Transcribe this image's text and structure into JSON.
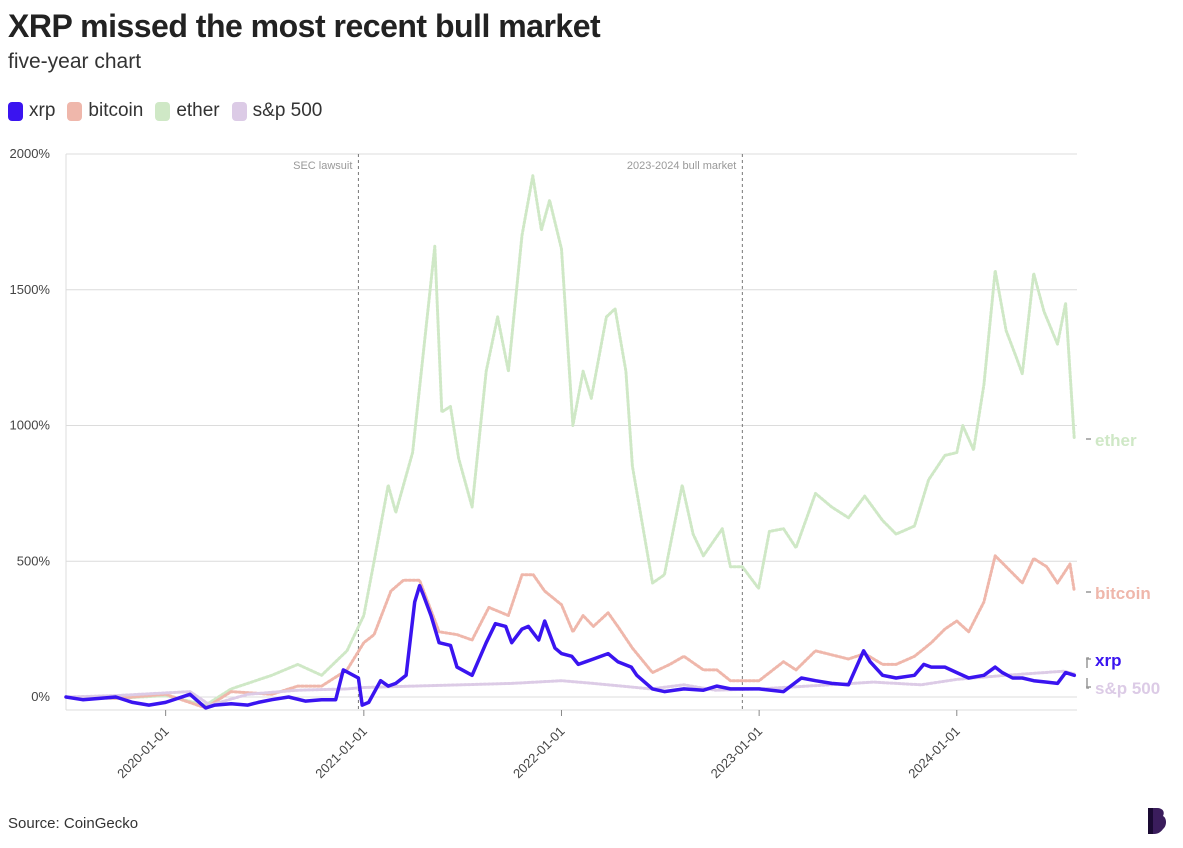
{
  "header": {
    "title": "XRP missed the most recent bull market",
    "subtitle": "five-year chart"
  },
  "legend": [
    {
      "label": "xrp",
      "color": "#3a14f0"
    },
    {
      "label": "bitcoin",
      "color": "#efb7ab"
    },
    {
      "label": "ether",
      "color": "#cfe8c6"
    },
    {
      "label": "s&p 500",
      "color": "#dccbe6"
    }
  ],
  "footer": {
    "source": "Source: CoinGecko",
    "brand_icon": "publisher-logo-icon"
  },
  "chart_data": {
    "type": "line",
    "y_ticks": [
      "2000%",
      "1500%",
      "1000%",
      "500%",
      "0%"
    ],
    "y_tick_values": [
      2000,
      1500,
      1000,
      500,
      0
    ],
    "ylim": [
      -50,
      2000
    ],
    "x_ticks": [
      "2020-01-01",
      "2021-01-01",
      "2022-01-01",
      "2023-01-01",
      "2024-01-01"
    ],
    "xlim": [
      "2019-07-01",
      "2024-08-10"
    ],
    "grid": true,
    "annotations": [
      {
        "label": "SEC lawsuit",
        "date": "2020-12-22"
      },
      {
        "label": "2023-2024 bull market",
        "date": "2022-12-01"
      }
    ],
    "series": [
      {
        "name": "ether",
        "color": "#cfe8c6",
        "end_label": "ether",
        "points": [
          [
            "2019-07-01",
            0
          ],
          [
            "2019-10-01",
            -5
          ],
          [
            "2020-01-01",
            5
          ],
          [
            "2020-03-15",
            -30
          ],
          [
            "2020-05-01",
            30
          ],
          [
            "2020-07-15",
            80
          ],
          [
            "2020-09-01",
            120
          ],
          [
            "2020-10-15",
            80
          ],
          [
            "2020-12-01",
            170
          ],
          [
            "2021-01-01",
            300
          ],
          [
            "2021-01-20",
            500
          ],
          [
            "2021-02-15",
            780
          ],
          [
            "2021-03-01",
            680
          ],
          [
            "2021-04-01",
            900
          ],
          [
            "2021-05-12",
            1660
          ],
          [
            "2021-05-25",
            1050
          ],
          [
            "2021-06-10",
            1070
          ],
          [
            "2021-06-25",
            880
          ],
          [
            "2021-07-20",
            700
          ],
          [
            "2021-08-15",
            1200
          ],
          [
            "2021-09-05",
            1400
          ],
          [
            "2021-09-25",
            1200
          ],
          [
            "2021-10-20",
            1700
          ],
          [
            "2021-11-09",
            1920
          ],
          [
            "2021-11-25",
            1720
          ],
          [
            "2021-12-10",
            1830
          ],
          [
            "2022-01-01",
            1650
          ],
          [
            "2022-01-22",
            1000
          ],
          [
            "2022-02-10",
            1200
          ],
          [
            "2022-02-25",
            1100
          ],
          [
            "2022-03-25",
            1400
          ],
          [
            "2022-04-10",
            1430
          ],
          [
            "2022-04-30",
            1200
          ],
          [
            "2022-05-12",
            850
          ],
          [
            "2022-06-18",
            420
          ],
          [
            "2022-07-10",
            450
          ],
          [
            "2022-08-12",
            780
          ],
          [
            "2022-09-01",
            600
          ],
          [
            "2022-09-20",
            520
          ],
          [
            "2022-10-25",
            620
          ],
          [
            "2022-11-09",
            480
          ],
          [
            "2022-12-01",
            480
          ],
          [
            "2022-12-31",
            400
          ],
          [
            "2023-01-20",
            610
          ],
          [
            "2023-02-15",
            620
          ],
          [
            "2023-03-10",
            550
          ],
          [
            "2023-04-15",
            750
          ],
          [
            "2023-05-15",
            700
          ],
          [
            "2023-06-15",
            660
          ],
          [
            "2023-07-15",
            740
          ],
          [
            "2023-08-17",
            650
          ],
          [
            "2023-09-11",
            600
          ],
          [
            "2023-10-15",
            630
          ],
          [
            "2023-11-10",
            800
          ],
          [
            "2023-12-10",
            890
          ],
          [
            "2024-01-01",
            900
          ],
          [
            "2024-01-12",
            1000
          ],
          [
            "2024-02-01",
            910
          ],
          [
            "2024-02-20,x",
            1150
          ],
          [
            "2024-03-12",
            1570
          ],
          [
            "2024-04-01",
            1350
          ],
          [
            "2024-04-20",
            1250
          ],
          [
            "2024-05-01",
            1190
          ],
          [
            "2024-05-22",
            1560
          ],
          [
            "2024-06-10",
            1420
          ],
          [
            "2024-07-05",
            1300
          ],
          [
            "2024-07-20",
            1450
          ],
          [
            "2024-08-05",
            950
          ]
        ]
      },
      {
        "name": "bitcoin",
        "color": "#efb7ab",
        "end_label": "bitcoin",
        "points": [
          [
            "2019-07-01",
            0
          ],
          [
            "2019-10-01",
            -5
          ],
          [
            "2020-01-01",
            10
          ],
          [
            "2020-03-15",
            -40
          ],
          [
            "2020-05-01",
            20
          ],
          [
            "2020-07-15",
            10
          ],
          [
            "2020-09-01",
            40
          ],
          [
            "2020-10-15",
            40
          ],
          [
            "2020-12-01",
            100
          ],
          [
            "2021-01-01",
            200
          ],
          [
            "2021-01-20",
            230
          ],
          [
            "2021-02-20",
            390
          ],
          [
            "2021-03-15",
            430
          ],
          [
            "2021-04-14",
            430
          ],
          [
            "2021-05-20",
            240
          ],
          [
            "2021-06-22",
            230
          ],
          [
            "2021-07-20",
            210
          ],
          [
            "2021-08-20",
            330
          ],
          [
            "2021-09-25",
            300
          ],
          [
            "2021-10-20",
            450
          ],
          [
            "2021-11-10",
            450
          ],
          [
            "2021-12-01",
            390
          ],
          [
            "2022-01-01",
            340
          ],
          [
            "2022-01-22",
            240
          ],
          [
            "2022-02-10",
            300
          ],
          [
            "2022-03-01",
            260
          ],
          [
            "2022-03-28",
            310
          ],
          [
            "2022-04-15",
            260
          ],
          [
            "2022-05-12",
            180
          ],
          [
            "2022-06-18",
            90
          ],
          [
            "2022-07-20",
            120
          ],
          [
            "2022-08-15",
            150
          ],
          [
            "2022-09-20",
            100
          ],
          [
            "2022-10-15",
            100
          ],
          [
            "2022-11-09",
            60
          ],
          [
            "2022-12-15",
            60
          ],
          [
            "2023-01-01",
            60
          ],
          [
            "2023-02-15",
            130
          ],
          [
            "2023-03-10",
            100
          ],
          [
            "2023-04-15",
            170
          ],
          [
            "2023-06-15",
            140
          ],
          [
            "2023-07-15",
            160
          ],
          [
            "2023-08-17",
            120
          ],
          [
            "2023-09-11",
            120
          ],
          [
            "2023-10-15",
            150
          ],
          [
            "2023-11-15",
            200
          ],
          [
            "2023-12-10",
            250
          ],
          [
            "2024-01-01",
            280
          ],
          [
            "2024-01-23",
            240
          ],
          [
            "2024-02-20",
            350
          ],
          [
            "2024-03-12",
            520
          ],
          [
            "2024-04-01",
            480
          ],
          [
            "2024-05-01",
            420
          ],
          [
            "2024-05-22",
            510
          ],
          [
            "2024-06-15",
            480
          ],
          [
            "2024-07-05",
            420
          ],
          [
            "2024-07-28",
            490
          ],
          [
            "2024-08-05",
            390
          ]
        ]
      },
      {
        "name": "s&p 500",
        "color": "#dccbe6",
        "end_label": "s&p 500",
        "points": [
          [
            "2019-07-01",
            0
          ],
          [
            "2019-10-01",
            5
          ],
          [
            "2020-01-01",
            15
          ],
          [
            "2020-02-15",
            20
          ],
          [
            "2020-03-23",
            -30
          ],
          [
            "2020-06-01",
            10
          ],
          [
            "2020-09-01",
            25
          ],
          [
            "2020-12-01",
            30
          ],
          [
            "2021-01-01",
            35
          ],
          [
            "2021-04-01",
            40
          ],
          [
            "2021-07-01",
            45
          ],
          [
            "2021-10-01",
            50
          ],
          [
            "2022-01-01",
            60
          ],
          [
            "2022-03-01",
            50
          ],
          [
            "2022-06-15",
            30
          ],
          [
            "2022-08-15",
            45
          ],
          [
            "2022-10-12",
            25
          ],
          [
            "2023-01-01",
            30
          ],
          [
            "2023-04-01",
            40
          ],
          [
            "2023-07-31",
            55
          ],
          [
            "2023-10-27",
            45
          ],
          [
            "2024-01-01",
            65
          ],
          [
            "2024-04-01",
            80
          ],
          [
            "2024-07-16",
            95
          ],
          [
            "2024-08-05",
            85
          ]
        ]
      },
      {
        "name": "xrp",
        "color": "#3a14f0",
        "end_label": "xrp",
        "points": [
          [
            "2019-07-01",
            0
          ],
          [
            "2019-08-01",
            -10
          ],
          [
            "2019-09-01",
            -5
          ],
          [
            "2019-10-01",
            0
          ],
          [
            "2019-11-01",
            -20
          ],
          [
            "2019-12-01",
            -30
          ],
          [
            "2020-01-01",
            -20
          ],
          [
            "2020-02-15",
            10
          ],
          [
            "2020-03-15",
            -40
          ],
          [
            "2020-04-01",
            -30
          ],
          [
            "2020-05-01",
            -25
          ],
          [
            "2020-06-01",
            -30
          ],
          [
            "2020-06-20",
            -20
          ],
          [
            "2020-07-15",
            -10
          ],
          [
            "2020-08-15",
            0
          ],
          [
            "2020-09-15",
            -15
          ],
          [
            "2020-10-15",
            -10
          ],
          [
            "2020-11-10",
            -10
          ],
          [
            "2020-11-24",
            100
          ],
          [
            "2020-12-22",
            70
          ],
          [
            "2020-12-29",
            -30
          ],
          [
            "2021-01-10",
            -20
          ],
          [
            "2021-02-01",
            60
          ],
          [
            "2021-02-15",
            40
          ],
          [
            "2021-03-01",
            50
          ],
          [
            "2021-03-20",
            80
          ],
          [
            "2021-04-05",
            350
          ],
          [
            "2021-04-14",
            410
          ],
          [
            "2021-04-20",
            380
          ],
          [
            "2021-05-05",
            300
          ],
          [
            "2021-05-20",
            200
          ],
          [
            "2021-06-10",
            190
          ],
          [
            "2021-06-22",
            110
          ],
          [
            "2021-07-20",
            80
          ],
          [
            "2021-08-15",
            200
          ],
          [
            "2021-09-01",
            270
          ],
          [
            "2021-09-20",
            260
          ],
          [
            "2021-10-01",
            200
          ],
          [
            "2021-10-20",
            250
          ],
          [
            "2021-11-01",
            260
          ],
          [
            "2021-11-20",
            210
          ],
          [
            "2021-12-01",
            280
          ],
          [
            "2021-12-20",
            180
          ],
          [
            "2022-01-01",
            160
          ],
          [
            "2022-01-20",
            150
          ],
          [
            "2022-02-01",
            120
          ],
          [
            "2022-02-15",
            130
          ],
          [
            "2022-03-01",
            140
          ],
          [
            "2022-03-28",
            160
          ],
          [
            "2022-04-15",
            130
          ],
          [
            "2022-05-10",
            110
          ],
          [
            "2022-05-20",
            80
          ],
          [
            "2022-06-18",
            30
          ],
          [
            "2022-07-10",
            20
          ],
          [
            "2022-08-15",
            30
          ],
          [
            "2022-09-20",
            25
          ],
          [
            "2022-10-15",
            40
          ],
          [
            "2022-11-09",
            30
          ],
          [
            "2022-12-15",
            30
          ],
          [
            "2023-01-01",
            30
          ],
          [
            "2023-02-15",
            20
          ],
          [
            "2023-03-20",
            70
          ],
          [
            "2023-04-15",
            60
          ],
          [
            "2023-05-15",
            50
          ],
          [
            "2023-06-15",
            45
          ],
          [
            "2023-07-13",
            170
          ],
          [
            "2023-07-25",
            130
          ],
          [
            "2023-08-17",
            80
          ],
          [
            "2023-09-11",
            70
          ],
          [
            "2023-10-15",
            80
          ],
          [
            "2023-11-01",
            120
          ],
          [
            "2023-11-15",
            110
          ],
          [
            "2023-12-10",
            110
          ],
          [
            "2024-01-01",
            90
          ],
          [
            "2024-01-23",
            70
          ],
          [
            "2024-02-20",
            80
          ],
          [
            "2024-03-12",
            110
          ],
          [
            "2024-03-25",
            90
          ],
          [
            "2024-04-13",
            70
          ],
          [
            "2024-05-01",
            70
          ],
          [
            "2024-05-22",
            60
          ],
          [
            "2024-06-15",
            55
          ],
          [
            "2024-07-05",
            50
          ],
          [
            "2024-07-20",
            90
          ],
          [
            "2024-08-05",
            80
          ]
        ]
      }
    ]
  }
}
